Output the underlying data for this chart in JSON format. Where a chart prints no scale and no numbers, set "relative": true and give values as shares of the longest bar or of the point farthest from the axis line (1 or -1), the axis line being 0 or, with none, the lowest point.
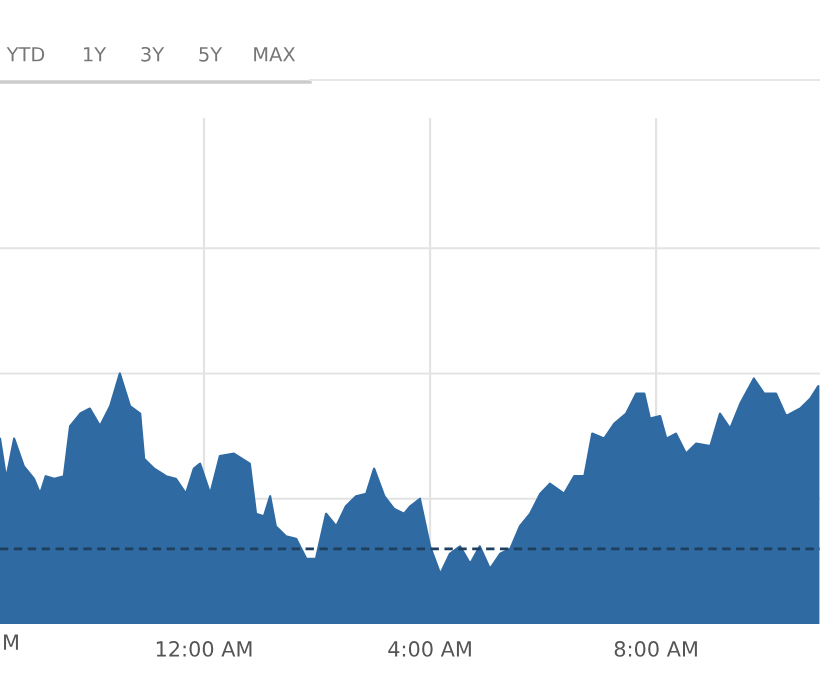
{
  "chart_data": {
    "type": "area",
    "relative": true,
    "color": "#2f6aa3",
    "x": [
      -3.61,
      -3.5,
      -3.36,
      -3.19,
      -3.01,
      -2.9,
      -2.8,
      -2.65,
      -2.48,
      -2.37,
      -2.19,
      -2.02,
      -1.84,
      -1.66,
      -1.49,
      -1.31,
      -1.13,
      -1.06,
      -0.88,
      -0.67,
      -0.5,
      -0.32,
      -0.18,
      -0.07,
      0.11,
      0.28,
      0.53,
      0.81,
      0.92,
      1.06,
      1.17,
      1.27,
      1.45,
      1.63,
      1.81,
      1.98,
      2.16,
      2.34,
      2.51,
      2.69,
      2.87,
      3.01,
      3.19,
      3.36,
      3.54,
      3.65,
      3.82,
      4.0,
      4.18,
      4.35,
      4.53,
      4.71,
      4.88,
      5.06,
      5.24,
      5.42,
      5.59,
      5.77,
      5.95,
      6.12,
      6.37,
      6.55,
      6.73,
      6.87,
      7.08,
      7.26,
      7.47,
      7.65,
      7.79,
      7.89,
      8.07,
      8.18,
      8.35,
      8.53,
      8.71,
      8.96,
      9.13,
      9.31,
      9.49,
      9.73,
      9.91,
      10.12,
      10.3,
      10.55,
      10.73,
      10.87
    ],
    "values": [
      0.74,
      0.58,
      0.74,
      0.63,
      0.58,
      0.52,
      0.59,
      0.58,
      0.59,
      0.79,
      0.84,
      0.86,
      0.79,
      0.87,
      1.0,
      0.87,
      0.84,
      0.66,
      0.62,
      0.59,
      0.58,
      0.52,
      0.62,
      0.64,
      0.52,
      0.67,
      0.68,
      0.64,
      0.44,
      0.43,
      0.51,
      0.39,
      0.35,
      0.34,
      0.26,
      0.26,
      0.44,
      0.39,
      0.47,
      0.51,
      0.52,
      0.62,
      0.51,
      0.46,
      0.44,
      0.47,
      0.5,
      0.31,
      0.2,
      0.28,
      0.31,
      0.24,
      0.31,
      0.22,
      0.28,
      0.3,
      0.39,
      0.44,
      0.52,
      0.56,
      0.52,
      0.59,
      0.59,
      0.76,
      0.74,
      0.8,
      0.84,
      0.92,
      0.92,
      0.82,
      0.83,
      0.74,
      0.76,
      0.68,
      0.72,
      0.71,
      0.84,
      0.78,
      0.88,
      0.98,
      0.92,
      0.92,
      0.83,
      0.86,
      0.9,
      0.95
    ],
    "xlim": [
      -3.61,
      10.9
    ],
    "xticks": [
      {
        "value": 0,
        "label": "12:00 AM"
      },
      {
        "value": 4,
        "label": "4:00 AM"
      },
      {
        "value": 8,
        "label": "8:00 AM"
      }
    ],
    "ref_lines": [
      {
        "axis": "y",
        "value": 0.3,
        "color": "#1f3f5f",
        "line_style": "dashed"
      }
    ],
    "grid": true,
    "annotations": [
      "YTD",
      "1Y",
      "3Y",
      "5Y",
      "MAX",
      "M"
    ]
  }
}
